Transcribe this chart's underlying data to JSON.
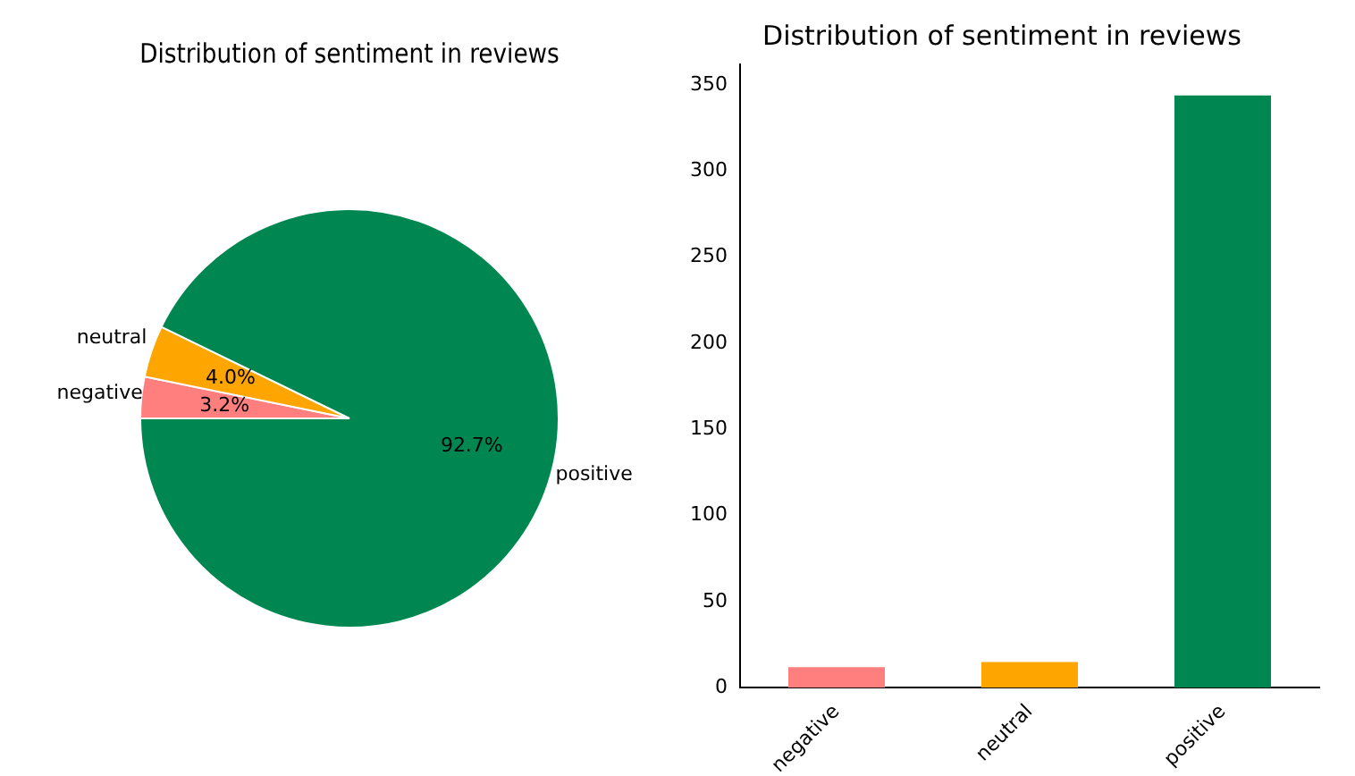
{
  "chart_data": [
    {
      "type": "pie",
      "title": "Distribution of sentiment in reviews",
      "categories": [
        "negative",
        "neutral",
        "positive"
      ],
      "values": [
        3.2,
        4.0,
        92.7
      ],
      "value_labels": [
        "3.2%",
        "4.0%",
        "92.7%"
      ],
      "colors": [
        "#ff7f7f",
        "#ffa500",
        "#008751"
      ]
    },
    {
      "type": "bar",
      "title": "Distribution of sentiment in reviews",
      "categories": [
        "negative",
        "neutral",
        "positive"
      ],
      "values": [
        12,
        15,
        344
      ],
      "colors": [
        "#ff7f7f",
        "#ffa500",
        "#008751"
      ],
      "ylim": [
        0,
        362
      ],
      "yticks": [
        0,
        50,
        100,
        150,
        200,
        250,
        300,
        350
      ],
      "grid": false,
      "legend": false
    }
  ]
}
